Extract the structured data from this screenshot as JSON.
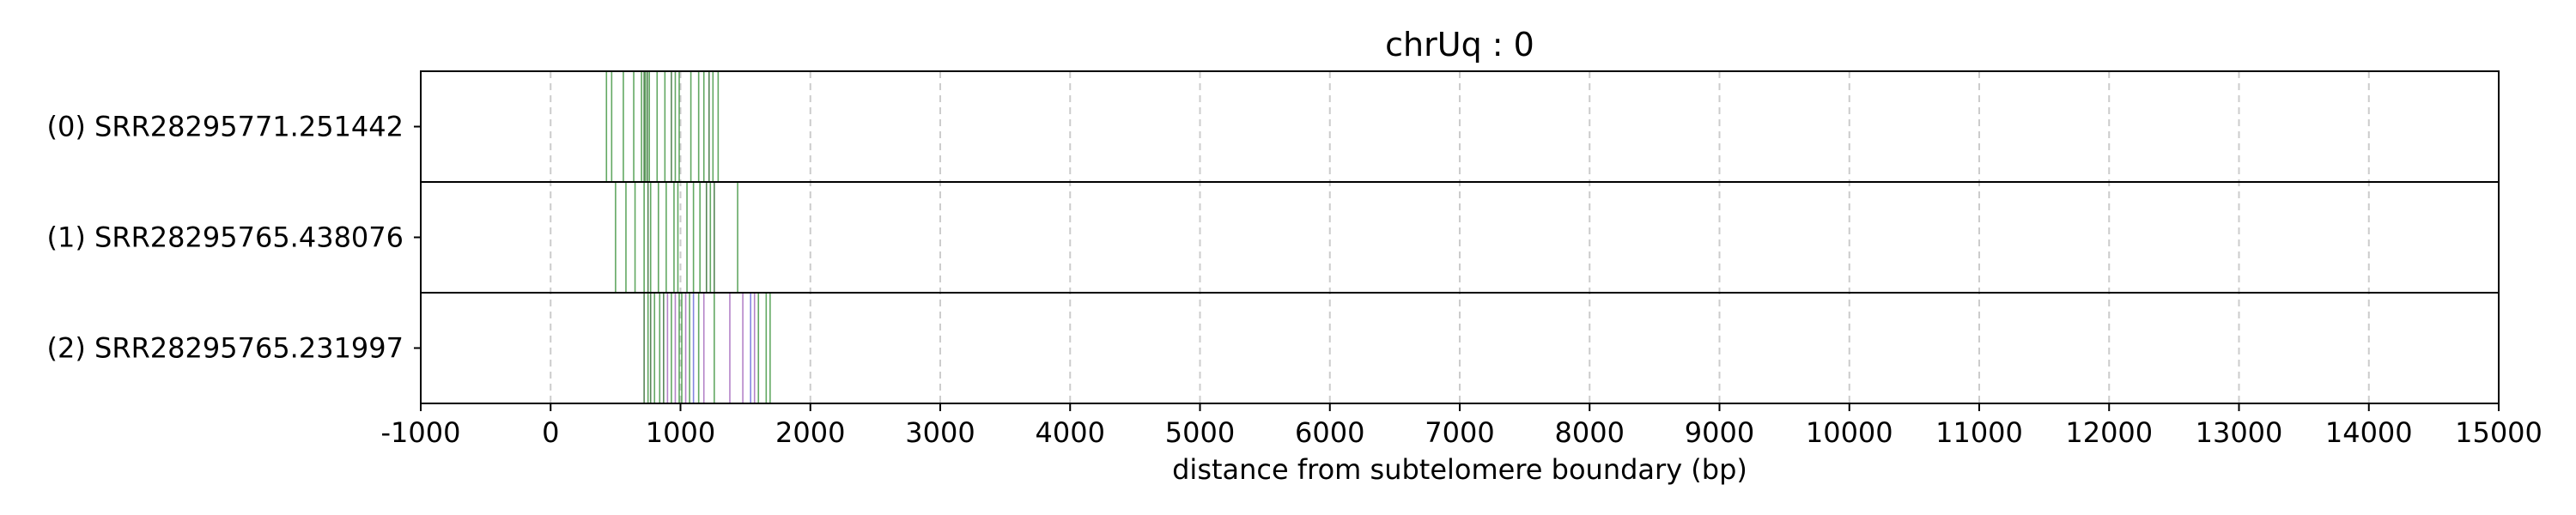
{
  "chart_data": {
    "type": "strip",
    "title": "chrUq : 0",
    "xlabel": "distance from subtelomere boundary (bp)",
    "ylabel": "",
    "xlim": [
      -1000,
      15000
    ],
    "xticks": [
      -1000,
      0,
      1000,
      2000,
      3000,
      4000,
      5000,
      6000,
      7000,
      8000,
      9000,
      10000,
      11000,
      12000,
      13000,
      14000,
      15000
    ],
    "grid": {
      "x": true,
      "style": "dashed",
      "color": "#cccccc"
    },
    "colors": {
      "green": "#2e8b2e",
      "dark_green": "#1f5f1f",
      "purple": "#9b59b6",
      "blue": "#5b5bd6",
      "frame": "#000000"
    },
    "rows": [
      {
        "label": "(0) SRR28295771.251442",
        "marks": [
          {
            "x": 430,
            "color": "green"
          },
          {
            "x": 470,
            "color": "green"
          },
          {
            "x": 560,
            "color": "green"
          },
          {
            "x": 640,
            "color": "green"
          },
          {
            "x": 700,
            "color": "green"
          },
          {
            "x": 720,
            "color": "dark_green"
          },
          {
            "x": 730,
            "color": "green"
          },
          {
            "x": 745,
            "color": "dark_green"
          },
          {
            "x": 760,
            "color": "green"
          },
          {
            "x": 820,
            "color": "green"
          },
          {
            "x": 880,
            "color": "green"
          },
          {
            "x": 930,
            "color": "dark_green"
          },
          {
            "x": 960,
            "color": "green"
          },
          {
            "x": 990,
            "color": "green"
          },
          {
            "x": 1080,
            "color": "green"
          },
          {
            "x": 1140,
            "color": "green"
          },
          {
            "x": 1180,
            "color": "green"
          },
          {
            "x": 1220,
            "color": "dark_green"
          },
          {
            "x": 1250,
            "color": "green"
          },
          {
            "x": 1290,
            "color": "green"
          }
        ]
      },
      {
        "label": "(1) SRR28295765.438076",
        "marks": [
          {
            "x": 500,
            "color": "green"
          },
          {
            "x": 580,
            "color": "green"
          },
          {
            "x": 650,
            "color": "green"
          },
          {
            "x": 720,
            "color": "green"
          },
          {
            "x": 750,
            "color": "dark_green"
          },
          {
            "x": 770,
            "color": "green"
          },
          {
            "x": 830,
            "color": "green"
          },
          {
            "x": 890,
            "color": "green"
          },
          {
            "x": 950,
            "color": "green"
          },
          {
            "x": 980,
            "color": "green"
          },
          {
            "x": 1050,
            "color": "green"
          },
          {
            "x": 1100,
            "color": "green"
          },
          {
            "x": 1150,
            "color": "green"
          },
          {
            "x": 1200,
            "color": "dark_green"
          },
          {
            "x": 1230,
            "color": "green"
          },
          {
            "x": 1260,
            "color": "dark_green"
          },
          {
            "x": 1440,
            "color": "green"
          }
        ]
      },
      {
        "label": "(2) SRR28295765.231997",
        "marks": [
          {
            "x": 720,
            "color": "dark_green"
          },
          {
            "x": 750,
            "color": "green"
          },
          {
            "x": 770,
            "color": "dark_green"
          },
          {
            "x": 800,
            "color": "green"
          },
          {
            "x": 840,
            "color": "green"
          },
          {
            "x": 870,
            "color": "dark_green"
          },
          {
            "x": 900,
            "color": "purple"
          },
          {
            "x": 930,
            "color": "green"
          },
          {
            "x": 960,
            "color": "purple"
          },
          {
            "x": 990,
            "color": "green"
          },
          {
            "x": 1010,
            "color": "green"
          },
          {
            "x": 1040,
            "color": "purple"
          },
          {
            "x": 1070,
            "color": "green"
          },
          {
            "x": 1100,
            "color": "blue"
          },
          {
            "x": 1140,
            "color": "green"
          },
          {
            "x": 1180,
            "color": "purple"
          },
          {
            "x": 1260,
            "color": "green"
          },
          {
            "x": 1380,
            "color": "purple"
          },
          {
            "x": 1480,
            "color": "purple"
          },
          {
            "x": 1540,
            "color": "blue"
          },
          {
            "x": 1570,
            "color": "purple"
          },
          {
            "x": 1600,
            "color": "green"
          },
          {
            "x": 1660,
            "color": "green"
          },
          {
            "x": 1690,
            "color": "green"
          }
        ]
      }
    ]
  }
}
